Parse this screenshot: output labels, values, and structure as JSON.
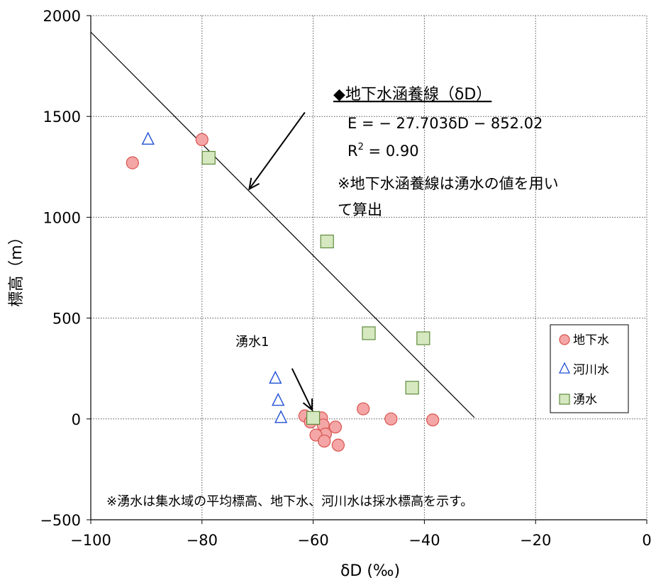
{
  "chart_data": {
    "type": "scatter",
    "xlabel": "δD (‰)",
    "ylabel": "標高（m）",
    "xlim": [
      -100,
      0
    ],
    "ylim": [
      -500,
      2000
    ],
    "x_ticks": [
      -100,
      -80,
      -60,
      -40,
      -20,
      0
    ],
    "x_tick_labels": [
      "−100",
      "−80",
      "−60",
      "−40",
      "−20",
      "0"
    ],
    "y_ticks": [
      -500,
      0,
      500,
      1000,
      1500,
      2000
    ],
    "y_tick_labels": [
      "−500",
      "0",
      "500",
      "1000",
      "1500",
      "2000"
    ],
    "grid": true,
    "legend_position": "right",
    "series": [
      {
        "name": "地下水",
        "marker": "circle",
        "color": "#f4a6a6",
        "stroke": "#d9534f",
        "points": [
          {
            "x": -92.5,
            "y": 1270
          },
          {
            "x": -80.0,
            "y": 1385
          },
          {
            "x": -61.5,
            "y": 15
          },
          {
            "x": -60.5,
            "y": -15
          },
          {
            "x": -58.5,
            "y": 5
          },
          {
            "x": -58.2,
            "y": -30
          },
          {
            "x": -57.8,
            "y": -75
          },
          {
            "x": -59.5,
            "y": -80
          },
          {
            "x": -58.0,
            "y": -110
          },
          {
            "x": -56.0,
            "y": -40
          },
          {
            "x": -55.5,
            "y": -130
          },
          {
            "x": -51.0,
            "y": 50
          },
          {
            "x": -46.0,
            "y": 0
          },
          {
            "x": -38.5,
            "y": -5
          }
        ]
      },
      {
        "name": "河川水",
        "marker": "triangle",
        "color": "#ffffff",
        "stroke": "#1f4fd6",
        "points": [
          {
            "x": -89.7,
            "y": 1385
          },
          {
            "x": -66.8,
            "y": 200
          },
          {
            "x": -66.3,
            "y": 90
          },
          {
            "x": -65.8,
            "y": 5
          }
        ]
      },
      {
        "name": "湧水",
        "marker": "square",
        "color": "#d6e8c0",
        "stroke": "#5f8a3b",
        "points": [
          {
            "x": -78.8,
            "y": 1295
          },
          {
            "x": -57.5,
            "y": 880
          },
          {
            "x": -50.0,
            "y": 425
          },
          {
            "x": -40.2,
            "y": 400
          },
          {
            "x": -42.2,
            "y": 155
          },
          {
            "x": -60.0,
            "y": 5
          }
        ]
      }
    ],
    "trendline": {
      "equation": "E = − 27.703δD − 852.02",
      "slope": -27.703,
      "intercept": -852.02,
      "x_range": [
        -100,
        -31
      ],
      "r2_prefix": "R",
      "r2_sup": "2",
      "r2_value": " = 0.90"
    },
    "annotations": {
      "line_title": "◆地下水涵養線（δD）",
      "note_line1": "※地下水涵養線は湧水の値を用い",
      "note_line2": "て算出",
      "spring1_label": "湧水1",
      "footer_note": "※湧水は集水域の平均標高、地下水、河川水は採水標高を示す。"
    },
    "arrows": [
      {
        "from": {
          "x": -61.5,
          "y": 1520
        },
        "to": {
          "x": -71.5,
          "y": 1140
        }
      },
      {
        "from": {
          "x": -63.8,
          "y": 250
        },
        "to": {
          "x": -60.2,
          "y": 45
        }
      }
    ]
  }
}
